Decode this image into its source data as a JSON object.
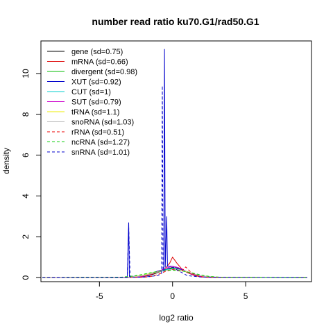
{
  "chart_data": {
    "type": "line",
    "title": "number read ratio ku70.G1/rad50.G1",
    "xlabel": "log2 ratio",
    "ylabel": "density",
    "xlim": [
      -9.0,
      9.5
    ],
    "ylim": [
      -0.2,
      11.6
    ],
    "x_ticks": [
      -5,
      0,
      5
    ],
    "y_ticks": [
      0,
      2,
      4,
      6,
      8,
      10
    ],
    "legend_position": "top-left",
    "series": [
      {
        "name": "gene (sd=0.75)",
        "color": "#000000",
        "dash": "solid",
        "points": [
          [
            -8.9,
            0
          ],
          [
            -3,
            0.01
          ],
          [
            -2,
            0.05
          ],
          [
            -1.5,
            0.12
          ],
          [
            -1,
            0.25
          ],
          [
            -0.5,
            0.38
          ],
          [
            -0.2,
            0.45
          ],
          [
            0,
            0.5
          ],
          [
            0.2,
            0.52
          ],
          [
            0.4,
            0.48
          ],
          [
            0.7,
            0.38
          ],
          [
            1,
            0.25
          ],
          [
            1.5,
            0.1
          ],
          [
            2,
            0.03
          ],
          [
            3,
            0.005
          ],
          [
            9.2,
            0
          ]
        ]
      },
      {
        "name": "mRNA (sd=0.66)",
        "color": "#dd0000",
        "dash": "solid",
        "points": [
          [
            -8.9,
            0
          ],
          [
            -3,
            0.01
          ],
          [
            -2,
            0.06
          ],
          [
            -1.5,
            0.14
          ],
          [
            -1,
            0.28
          ],
          [
            -0.5,
            0.45
          ],
          [
            -0.2,
            0.7
          ],
          [
            0,
            1.0
          ],
          [
            0.15,
            0.85
          ],
          [
            0.3,
            0.7
          ],
          [
            0.6,
            0.45
          ],
          [
            1,
            0.25
          ],
          [
            1.5,
            0.1
          ],
          [
            2,
            0.03
          ],
          [
            3,
            0.005
          ],
          [
            9.2,
            0
          ]
        ]
      },
      {
        "name": "divergent (sd=0.98)",
        "color": "#00bb00",
        "dash": "solid",
        "points": [
          [
            -8.9,
            0
          ],
          [
            -3,
            0.02
          ],
          [
            -2.5,
            0.06
          ],
          [
            -2,
            0.12
          ],
          [
            -1.5,
            0.2
          ],
          [
            -1,
            0.3
          ],
          [
            -0.5,
            0.4
          ],
          [
            0,
            0.46
          ],
          [
            0.4,
            0.42
          ],
          [
            0.8,
            0.34
          ],
          [
            1.2,
            0.22
          ],
          [
            1.7,
            0.12
          ],
          [
            2.2,
            0.05
          ],
          [
            3,
            0.01
          ],
          [
            9.2,
            0
          ]
        ]
      },
      {
        "name": "XUT (sd=0.92)",
        "color": "#0000cc",
        "dash": "solid",
        "points": [
          [
            -8.9,
            0
          ],
          [
            -3.1,
            0
          ],
          [
            -3.0,
            2.7
          ],
          [
            -2.95,
            0.05
          ],
          [
            -2,
            0.08
          ],
          [
            -1.5,
            0.2
          ],
          [
            -1,
            0.32
          ],
          [
            -0.6,
            0.4
          ],
          [
            -0.55,
            11.2
          ],
          [
            -0.5,
            0.5
          ],
          [
            -0.4,
            3.0
          ],
          [
            -0.35,
            0.55
          ],
          [
            0,
            0.55
          ],
          [
            0.5,
            0.42
          ],
          [
            1,
            0.28
          ],
          [
            1.5,
            0.14
          ],
          [
            2,
            0.05
          ],
          [
            3,
            0.01
          ],
          [
            9.2,
            0
          ]
        ]
      },
      {
        "name": "CUT (sd=1)",
        "color": "#00cccc",
        "dash": "solid",
        "points": [
          [
            -8.9,
            0
          ],
          [
            -3,
            0.02
          ],
          [
            -2.5,
            0.06
          ],
          [
            -2,
            0.12
          ],
          [
            -1.5,
            0.2
          ],
          [
            -1,
            0.3
          ],
          [
            -0.5,
            0.38
          ],
          [
            0,
            0.42
          ],
          [
            0.5,
            0.38
          ],
          [
            1,
            0.28
          ],
          [
            1.5,
            0.16
          ],
          [
            2,
            0.07
          ],
          [
            3,
            0.01
          ],
          [
            9.2,
            0
          ]
        ]
      },
      {
        "name": "SUT (sd=0.79)",
        "color": "#cc00cc",
        "dash": "solid",
        "points": [
          [
            -8.9,
            0
          ],
          [
            -3,
            0.01
          ],
          [
            -2,
            0.07
          ],
          [
            -1.5,
            0.16
          ],
          [
            -1,
            0.3
          ],
          [
            -0.5,
            0.45
          ],
          [
            0,
            0.55
          ],
          [
            0.3,
            0.5
          ],
          [
            0.7,
            0.4
          ],
          [
            1.1,
            0.24
          ],
          [
            1.6,
            0.1
          ],
          [
            2.2,
            0.03
          ],
          [
            3,
            0.005
          ],
          [
            9.2,
            0
          ]
        ]
      },
      {
        "name": "tRNA (sd=1.1)",
        "color": "#eeee00",
        "dash": "solid",
        "points": [
          [
            -8.9,
            0
          ],
          [
            -3,
            0.02
          ],
          [
            -2.5,
            0.06
          ],
          [
            -2,
            0.12
          ],
          [
            -1.5,
            0.2
          ],
          [
            -1,
            0.28
          ],
          [
            -0.5,
            0.35
          ],
          [
            0,
            0.4
          ],
          [
            0.5,
            0.37
          ],
          [
            1,
            0.28
          ],
          [
            1.5,
            0.17
          ],
          [
            2,
            0.08
          ],
          [
            3,
            0.02
          ],
          [
            9.2,
            0
          ]
        ]
      },
      {
        "name": "snoRNA (sd=1.03)",
        "color": "#bbbbbb",
        "dash": "solid",
        "points": [
          [
            -8.9,
            0
          ],
          [
            -3,
            0.02
          ],
          [
            -2.5,
            0.05
          ],
          [
            -2,
            0.1
          ],
          [
            -1.5,
            0.18
          ],
          [
            -1,
            0.27
          ],
          [
            -0.5,
            0.35
          ],
          [
            0,
            0.4
          ],
          [
            0.5,
            0.38
          ],
          [
            1,
            0.3
          ],
          [
            1.5,
            0.18
          ],
          [
            2,
            0.08
          ],
          [
            3,
            0.02
          ],
          [
            9.2,
            0
          ]
        ]
      },
      {
        "name": "rRNA (sd=0.51)",
        "color": "#ee0000",
        "dash": "dashed",
        "points": [
          [
            -8.9,
            0
          ],
          [
            -2,
            0.01
          ],
          [
            -1.5,
            0.05
          ],
          [
            -1,
            0.15
          ],
          [
            -0.5,
            0.3
          ],
          [
            0,
            0.4
          ],
          [
            0.3,
            0.35
          ],
          [
            0.6,
            0.3
          ],
          [
            0.9,
            0.52
          ],
          [
            1.2,
            0.3
          ],
          [
            1.6,
            0.1
          ],
          [
            2.2,
            0.01
          ],
          [
            9.2,
            0
          ]
        ]
      },
      {
        "name": "ncRNA (sd=1.27)",
        "color": "#00cc00",
        "dash": "dashed",
        "points": [
          [
            -8.9,
            0
          ],
          [
            -3.5,
            0.02
          ],
          [
            -3,
            0.05
          ],
          [
            -2.5,
            0.1
          ],
          [
            -2,
            0.16
          ],
          [
            -1.5,
            0.24
          ],
          [
            -1,
            0.3
          ],
          [
            -0.5,
            0.35
          ],
          [
            0,
            0.36
          ],
          [
            0.5,
            0.34
          ],
          [
            1,
            0.28
          ],
          [
            1.5,
            0.2
          ],
          [
            2,
            0.12
          ],
          [
            2.5,
            0.06
          ],
          [
            3.5,
            0.01
          ],
          [
            9.2,
            0
          ]
        ]
      },
      {
        "name": "snRNA (sd=1.01)",
        "color": "#0000cc",
        "dash": "dashed",
        "points": [
          [
            -8.9,
            0
          ],
          [
            -3.1,
            0
          ],
          [
            -3.0,
            2.5
          ],
          [
            -2.9,
            0
          ],
          [
            -2,
            0.02
          ],
          [
            -1,
            0.1
          ],
          [
            -0.75,
            0.2
          ],
          [
            -0.7,
            9.4
          ],
          [
            -0.65,
            0.3
          ],
          [
            -0.5,
            0.4
          ],
          [
            0,
            0.5
          ],
          [
            0.5,
            0.3
          ],
          [
            1,
            0.1
          ],
          [
            2,
            0.02
          ],
          [
            9.2,
            0
          ]
        ]
      }
    ]
  }
}
